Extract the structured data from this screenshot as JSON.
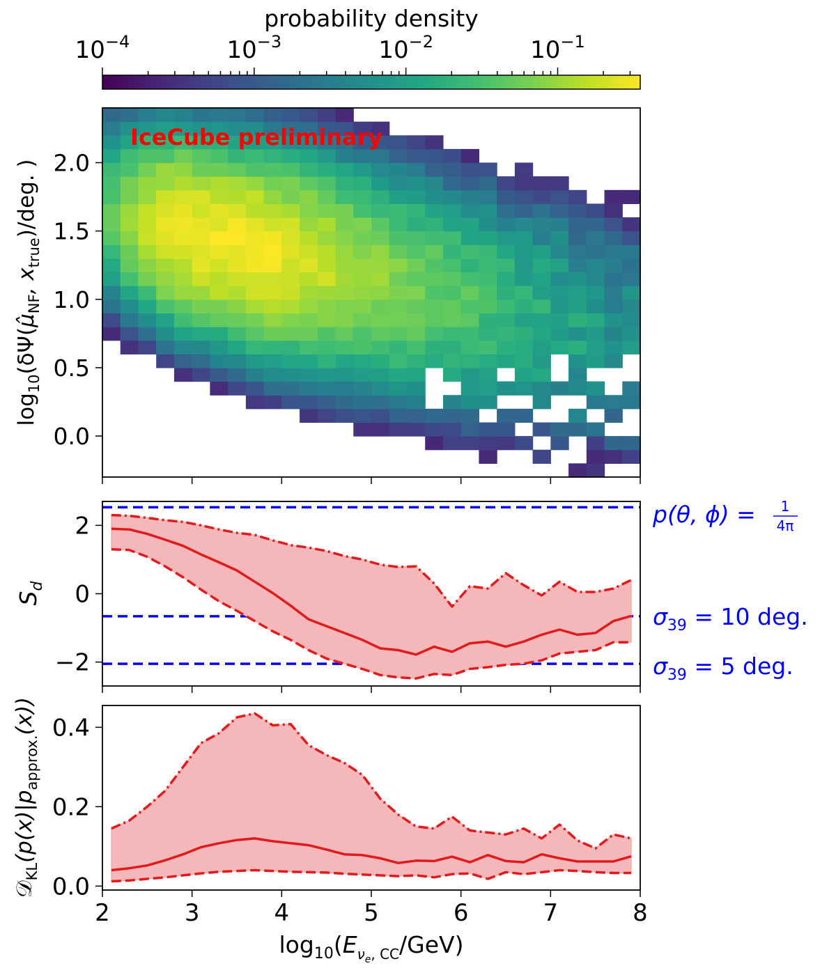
{
  "colorbar": {
    "label": "probability density",
    "ticks": [
      {
        "base": "10",
        "exp": "−4",
        "value": 0.0001
      },
      {
        "base": "10",
        "exp": "−3",
        "value": 0.001
      },
      {
        "base": "10",
        "exp": "−2",
        "value": 0.01
      },
      {
        "base": "10",
        "exp": "−1",
        "value": 0.1
      }
    ],
    "range": [
      0.0001,
      0.35
    ],
    "scale": "log",
    "colormap": "viridis"
  },
  "annotation": {
    "text": "IceCube preliminary",
    "color": "#ff0000"
  },
  "xaxis": {
    "label_prefix": "log",
    "label_sub": "10",
    "label_open": "(",
    "label_E": "E",
    "label_E_sub_nu": "ν",
    "label_E_sub_e": "e",
    "label_E_sub_cc": ", CC",
    "label_close": "/GeV)",
    "ticks": [
      "2",
      "3",
      "4",
      "5",
      "6",
      "7",
      "8"
    ],
    "range": [
      2,
      8
    ]
  },
  "chart_data": [
    {
      "type": "heatmap",
      "ylabel_parts": {
        "a": "log",
        "a_sub": "10",
        "b": "(δΨ(",
        "mu": "μ̂",
        "mu_sub": "NF",
        "c": ", x",
        "c_sub": "true",
        "d": ")/deg. )"
      },
      "xlim": [
        2,
        8
      ],
      "ylim": [
        -0.3,
        2.4
      ],
      "yticks": [
        "0.0",
        "0.5",
        "1.0",
        "1.5",
        "2.0"
      ],
      "ytick_values": [
        0.0,
        0.5,
        1.0,
        1.5,
        2.0
      ],
      "color_scale": "log",
      "x_bins": 30,
      "y_bins": 27,
      "x_bin_width": 0.2,
      "y_bin_width": 0.1,
      "peak": {
        "x": 3.9,
        "y": 1.15,
        "value": 0.3
      },
      "note": "2D histogram of log-density values estimated from color"
    },
    {
      "type": "line",
      "ylabel": "S",
      "ylabel_sub": "d",
      "xlim": [
        2,
        8
      ],
      "ylim": [
        -2.7,
        2.7
      ],
      "yticks": [
        "−2",
        "0",
        "2"
      ],
      "ytick_values": [
        -2,
        0,
        2
      ],
      "x": [
        2.1,
        2.3,
        2.5,
        2.7,
        2.9,
        3.1,
        3.3,
        3.5,
        3.7,
        3.9,
        4.1,
        4.3,
        4.5,
        4.7,
        4.9,
        5.1,
        5.3,
        5.5,
        5.7,
        5.9,
        6.1,
        6.3,
        6.5,
        6.7,
        6.9,
        7.1,
        7.3,
        7.5,
        7.7,
        7.9
      ],
      "series": [
        {
          "style": "dashdot",
          "values": [
            2.3,
            2.28,
            2.22,
            2.15,
            2.1,
            2.0,
            1.88,
            1.78,
            1.72,
            1.56,
            1.42,
            1.35,
            1.25,
            1.1,
            1.0,
            0.85,
            0.78,
            0.8,
            0.3,
            -0.38,
            0.22,
            0.15,
            0.6,
            0.25,
            -0.05,
            0.35,
            0.05,
            0.05,
            0.15,
            0.4
          ]
        },
        {
          "style": "solid",
          "values": [
            1.9,
            1.88,
            1.75,
            1.58,
            1.4,
            1.15,
            0.92,
            0.68,
            0.35,
            0.02,
            -0.35,
            -0.75,
            -0.95,
            -1.15,
            -1.35,
            -1.6,
            -1.65,
            -1.78,
            -1.55,
            -1.7,
            -1.45,
            -1.4,
            -1.55,
            -1.4,
            -1.2,
            -1.05,
            -1.2,
            -1.15,
            -0.8,
            -0.65
          ]
        },
        {
          "style": "dashed",
          "values": [
            1.3,
            1.28,
            1.08,
            0.8,
            0.48,
            0.12,
            -0.22,
            -0.5,
            -0.8,
            -1.1,
            -1.35,
            -1.65,
            -1.9,
            -2.05,
            -2.2,
            -2.38,
            -2.45,
            -2.48,
            -2.35,
            -2.38,
            -2.2,
            -2.15,
            -2.08,
            -2.05,
            -1.95,
            -1.75,
            -1.7,
            -1.65,
            -1.42,
            -1.42
          ]
        }
      ],
      "band_color": "#f4b8ba",
      "line_color": "#e31a1c",
      "reference_lines": [
        {
          "y": 2.53,
          "label": "p(θ, ϕ) = ",
          "frac_num": "1",
          "frac_den": "4π",
          "color": "#0000ff"
        },
        {
          "y": -0.66,
          "label_sigma": "σ",
          "label_sub": "39",
          "label_rest": " = 10 deg.",
          "color": "#0000ff"
        },
        {
          "y": -2.05,
          "label_sigma": "σ",
          "label_sub": "39",
          "label_rest": " = 5 deg.",
          "color": "#0000ff"
        }
      ]
    },
    {
      "type": "line",
      "ylabel_parts": {
        "a": "𝒟",
        "a_sub": "KL",
        "b": "(p(x)|p",
        "b_sub": "approx.",
        "c": "(x))"
      },
      "xlim": [
        2,
        8
      ],
      "ylim": [
        -0.01,
        0.455
      ],
      "yticks": [
        "0.0",
        "0.2",
        "0.4"
      ],
      "ytick_values": [
        0.0,
        0.2,
        0.4
      ],
      "x": [
        2.1,
        2.3,
        2.5,
        2.7,
        2.9,
        3.1,
        3.3,
        3.5,
        3.7,
        3.9,
        4.1,
        4.3,
        4.5,
        4.7,
        4.9,
        5.1,
        5.3,
        5.5,
        5.7,
        5.9,
        6.1,
        6.3,
        6.5,
        6.7,
        6.9,
        7.1,
        7.3,
        7.5,
        7.7,
        7.9
      ],
      "series": [
        {
          "style": "dashdot",
          "values": [
            0.145,
            0.165,
            0.2,
            0.24,
            0.3,
            0.36,
            0.385,
            0.425,
            0.435,
            0.405,
            0.408,
            0.355,
            0.33,
            0.31,
            0.28,
            0.22,
            0.18,
            0.15,
            0.145,
            0.175,
            0.14,
            0.135,
            0.13,
            0.145,
            0.12,
            0.155,
            0.115,
            0.095,
            0.13,
            0.12
          ]
        },
        {
          "style": "solid",
          "values": [
            0.04,
            0.045,
            0.052,
            0.065,
            0.08,
            0.098,
            0.108,
            0.116,
            0.12,
            0.113,
            0.108,
            0.103,
            0.092,
            0.08,
            0.078,
            0.07,
            0.058,
            0.064,
            0.063,
            0.074,
            0.06,
            0.078,
            0.063,
            0.06,
            0.08,
            0.07,
            0.062,
            0.062,
            0.062,
            0.075
          ]
        },
        {
          "style": "dashed",
          "values": [
            0.012,
            0.014,
            0.018,
            0.022,
            0.027,
            0.032,
            0.036,
            0.038,
            0.04,
            0.038,
            0.036,
            0.035,
            0.034,
            0.031,
            0.029,
            0.027,
            0.025,
            0.027,
            0.022,
            0.03,
            0.032,
            0.018,
            0.035,
            0.03,
            0.035,
            0.04,
            0.038,
            0.035,
            0.033,
            0.033
          ]
        }
      ],
      "band_color": "#f4b8ba",
      "line_color": "#e31a1c"
    }
  ]
}
